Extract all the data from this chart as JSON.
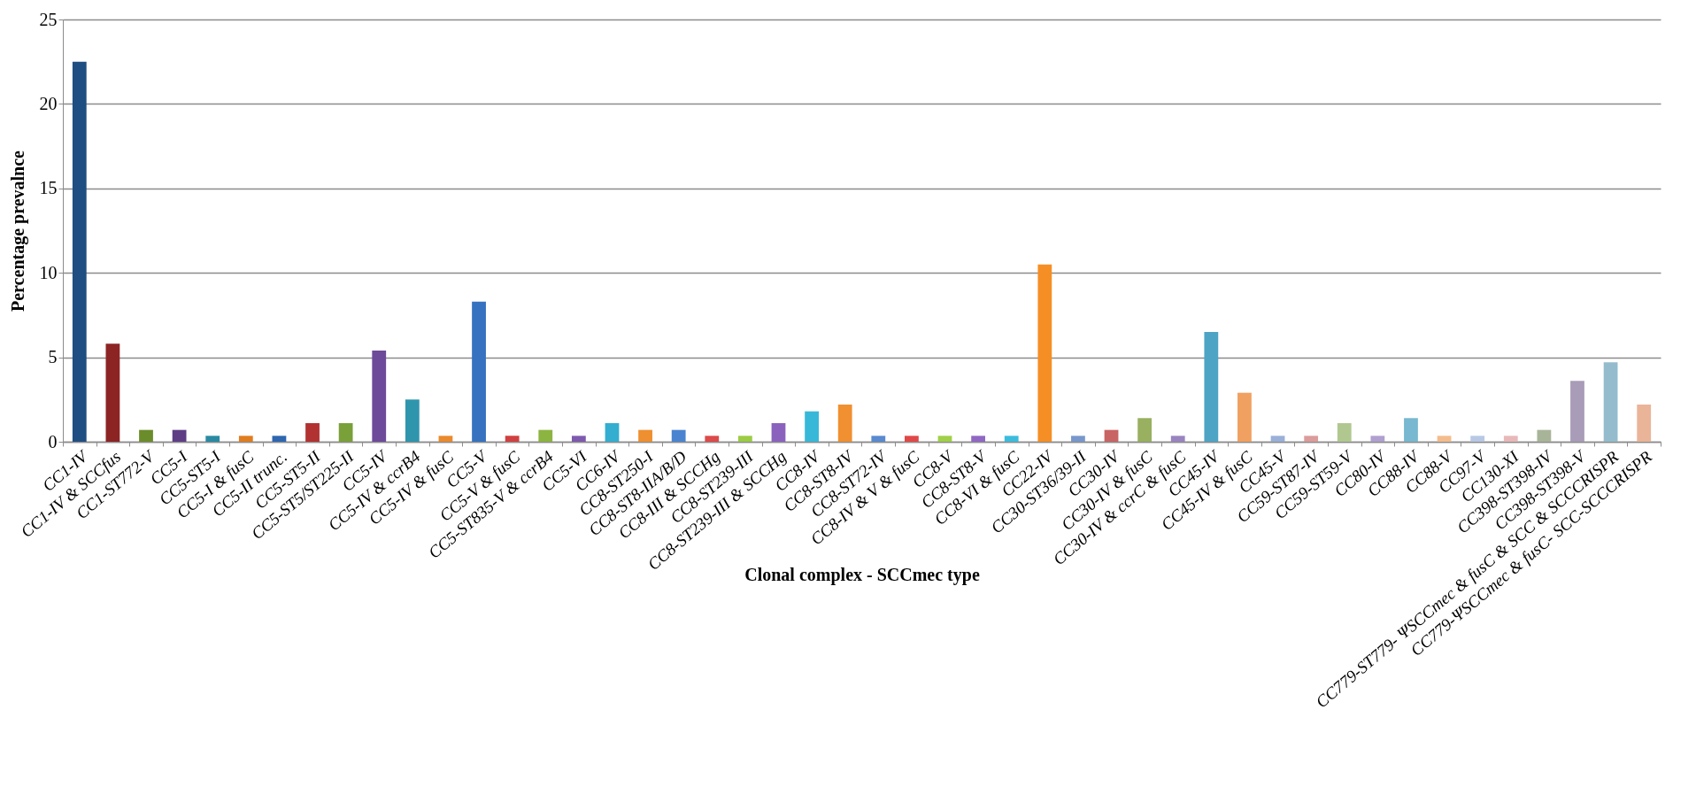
{
  "chart_data": {
    "type": "bar",
    "xlabel": "Clonal complex - SCCmec  type",
    "ylabel": "Percentage prevalnce",
    "categories": [
      "CC1-IV",
      "CC1-IV & SCCfus",
      "CC1-ST772-V",
      "CC5-I",
      "CC5-ST5-I",
      "CC5-I & fusC",
      "CC5-II trunc.",
      "CC5-ST5-II",
      "CC5-ST5/ST225-II",
      "CC5-IV",
      "CC5-IV & ccrB4",
      "CC5-IV & fusC",
      "CC5-V",
      "CC5-V & fusC",
      "CC5-ST835-V & ccrB4",
      "CC5-VI",
      "CC6-IV",
      "CC8-ST250-I",
      "CC8-ST8-IIA/B/D",
      "CC8-III & SCCHg",
      "CC8-ST239-III",
      "CC8-ST239-III & SCCHg",
      "CC8-IV",
      "CC8-ST8-IV",
      "CC8-ST72-IV",
      "CC8-IV & V & fusC",
      "CC8-V",
      "CC8-ST8-V",
      "CC8-VI & fusC",
      "CC22-IV",
      "CC30-ST36/39-II",
      "CC30-IV",
      "CC30-IV & fusC",
      "CC30-IV & ccrC & fusC",
      "CC45-IV",
      "CC45-IV & fusC",
      "CC45-V",
      "CC59-ST87-IV",
      "CC59-ST59-V",
      "CC80-IV",
      "CC88-IV",
      "CC88-V",
      "CC97-V",
      "CC130-XI",
      "CC398-ST398-IV",
      "CC398-ST398-V",
      "CC779-ST779- ΨSCCmec & fusC & SCC & SCCCRISPR",
      "CC779-ΨSCCmec & fusC- SCC-SCCCRISPR"
    ],
    "values": [
      22.5,
      5.8,
      0.7,
      0.7,
      0.35,
      0.35,
      0.35,
      1.1,
      1.1,
      5.4,
      2.5,
      0.35,
      8.3,
      0.35,
      0.7,
      0.35,
      1.1,
      0.7,
      0.7,
      0.35,
      0.35,
      1.1,
      1.8,
      2.2,
      0.35,
      0.35,
      0.35,
      0.35,
      0.35,
      10.5,
      0.35,
      0.7,
      1.4,
      0.35,
      6.5,
      2.9,
      0.35,
      0.35,
      1.1,
      0.35,
      1.4,
      0.35,
      0.35,
      0.35,
      0.7,
      3.6,
      4.7,
      2.2
    ],
    "colors": [
      "#1f4e82",
      "#8c2424",
      "#6b8c2a",
      "#5e3d85",
      "#2a8aa3",
      "#e07d1f",
      "#2e66b0",
      "#b23232",
      "#7aa03a",
      "#6e4a9a",
      "#2f95ad",
      "#ea8a2c",
      "#3672bf",
      "#d04040",
      "#8cb440",
      "#7e5aae",
      "#33aed0",
      "#ee8f30",
      "#4a84d0",
      "#dc4a4a",
      "#9ccc44",
      "#8a62be",
      "#38b8d8",
      "#f09030",
      "#5a8ad0",
      "#e04848",
      "#a0d048",
      "#9068c4",
      "#3cbcdc",
      "#f58f25",
      "#7898cc",
      "#c86464",
      "#98b060",
      "#9a84c0",
      "#4ea4c4",
      "#f0a060",
      "#9ab0d8",
      "#dc9c9c",
      "#b0c890",
      "#b0a0d0",
      "#78b8d0",
      "#f4bc8c",
      "#b8c8e4",
      "#e8b8b8",
      "#a8b498",
      "#a89cb8",
      "#94bccc",
      "#eab498"
    ],
    "ylim": [
      0,
      25
    ],
    "yticks": [
      0,
      5,
      10,
      15,
      20,
      25
    ],
    "grid": "y"
  }
}
